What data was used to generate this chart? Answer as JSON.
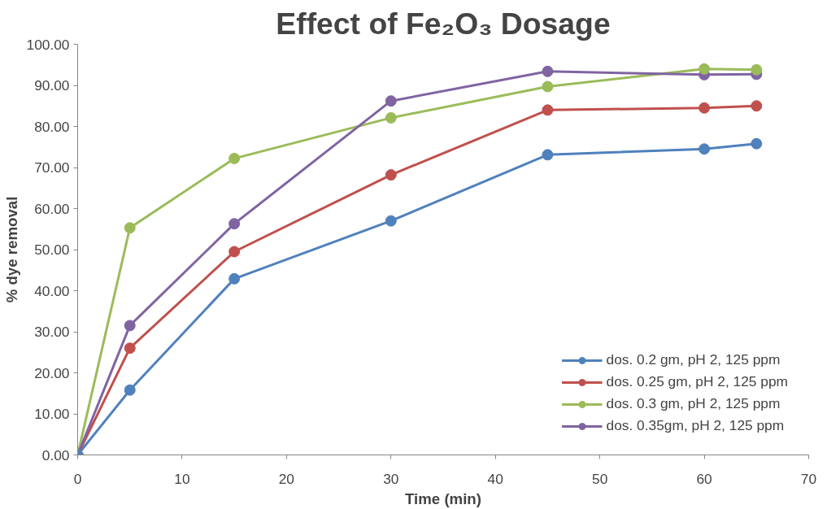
{
  "chart_data": {
    "type": "line",
    "title": "Effect of Fe₂O₃ Dosage",
    "xlabel": "Time (min)",
    "ylabel": "% dye removal",
    "x": [
      0,
      5,
      15,
      30,
      45,
      60,
      65
    ],
    "series": [
      {
        "name": "dos. 0.2 gm, pH 2, 125 ppm",
        "color": "#4f81bd",
        "values": [
          0,
          15.8,
          42.9,
          57.0,
          73.1,
          74.5,
          75.8
        ]
      },
      {
        "name": "dos. 0.25 gm, pH 2, 125 ppm",
        "color": "#c0504d",
        "values": [
          0,
          26.0,
          49.5,
          68.2,
          84.0,
          84.5,
          85.0
        ]
      },
      {
        "name": "dos. 0.3 gm, pH 2, 125 ppm",
        "color": "#9bbb59",
        "values": [
          0,
          55.3,
          72.2,
          82.1,
          89.7,
          94.0,
          93.8
        ]
      },
      {
        "name": "dos. 0.35gm, pH 2, 125 ppm",
        "color": "#8064a2",
        "values": [
          0,
          31.5,
          56.3,
          86.2,
          93.4,
          92.6,
          92.7
        ]
      }
    ],
    "xlim": [
      0,
      70
    ],
    "xticks": [
      0,
      10,
      20,
      30,
      40,
      50,
      60,
      70
    ],
    "ylim": [
      0,
      100
    ],
    "yticks": [
      {
        "value": 0,
        "label": "0.00"
      },
      {
        "value": 10,
        "label": "10.00"
      },
      {
        "value": 20,
        "label": "20.00"
      },
      {
        "value": 30,
        "label": "30.00"
      },
      {
        "value": 40,
        "label": "40.00"
      },
      {
        "value": 50,
        "label": "50.00"
      },
      {
        "value": 60,
        "label": "60.00"
      },
      {
        "value": 70,
        "label": "70.00"
      },
      {
        "value": 80,
        "label": "80.00"
      },
      {
        "value": 90,
        "label": "90.00"
      },
      {
        "value": 100,
        "label": "100.00"
      }
    ],
    "grid": false,
    "legend": "bottom right",
    "marker": "circle",
    "line_style": "solid"
  }
}
